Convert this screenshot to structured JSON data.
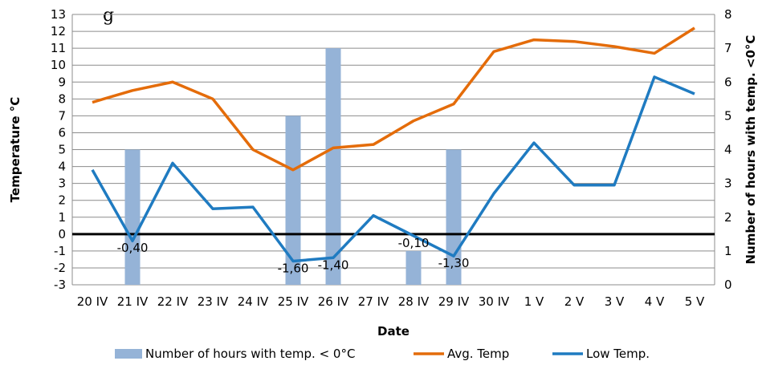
{
  "chart_data": {
    "type": "bar+line",
    "title": "",
    "xlabel": "Date",
    "ylabel": "Temperature °C",
    "y2label": "Number of hours  with temp. <0°C",
    "categories": [
      "20 IV",
      "21 IV",
      "22 IV",
      "23 IV",
      "24 IV",
      "25 IV",
      "26 IV",
      "27 IV",
      "28 IV",
      "29 IV",
      "30 IV",
      "1 V",
      "2 V",
      "3 V",
      "4 V",
      "5 V"
    ],
    "ylim": [
      -3,
      13
    ],
    "y2lim": [
      0,
      8
    ],
    "yticks": [
      "13",
      "12",
      "11",
      "10",
      "9",
      "8",
      "7",
      "6",
      "5",
      "4",
      "3",
      "2",
      "1",
      "0",
      "-1",
      "-2",
      "-3"
    ],
    "y2ticks": [
      "8",
      "7",
      "6",
      "5",
      "4",
      "3",
      "2",
      "1",
      "0"
    ],
    "grid": true,
    "legend_position": "bottom",
    "series": [
      {
        "name": "Number of hours with temp. < 0°C",
        "type": "bar",
        "axis": "right",
        "color": "#95b3d7",
        "values": [
          null,
          4,
          null,
          null,
          null,
          5,
          7,
          null,
          1,
          4,
          null,
          null,
          null,
          null,
          null,
          null
        ]
      },
      {
        "name": "Avg. Temp",
        "type": "line",
        "axis": "left",
        "color": "#e46c0a",
        "values": [
          7.8,
          8.5,
          9.0,
          8.0,
          5.0,
          3.8,
          5.1,
          5.3,
          6.7,
          7.7,
          10.8,
          11.5,
          11.4,
          11.1,
          10.7,
          12.2
        ]
      },
      {
        "name": "Low Temp.",
        "type": "line",
        "axis": "left",
        "color": "#1f7bc1",
        "values": [
          3.8,
          -0.4,
          4.2,
          1.5,
          1.6,
          -1.6,
          -1.4,
          1.1,
          -0.1,
          -1.3,
          2.4,
          5.4,
          2.9,
          2.9,
          9.3,
          8.3
        ]
      }
    ],
    "data_labels": [
      {
        "index": 1,
        "text": "-0,40"
      },
      {
        "index": 5,
        "text": "-1,60"
      },
      {
        "index": 6,
        "text": "-1,40"
      },
      {
        "index": 8,
        "text": "-0,10"
      },
      {
        "index": 9,
        "text": "-1,30"
      }
    ],
    "legend": [
      {
        "label": "Number of hours with temp. < 0°C",
        "kind": "bar",
        "color": "#95b3d7"
      },
      {
        "label": "Avg. Temp",
        "kind": "line",
        "color": "#e46c0a"
      },
      {
        "label": "Low Temp.",
        "kind": "line",
        "color": "#1f7bc1"
      }
    ],
    "corner_text": "g"
  }
}
